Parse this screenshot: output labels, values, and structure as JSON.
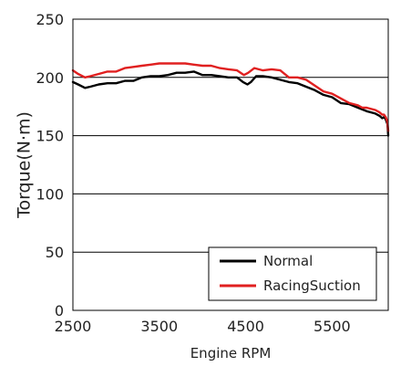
{
  "chart_data": {
    "type": "line",
    "title": "",
    "xlabel": "Engine RPM",
    "ylabel": "Torque(N·m)",
    "xlim": [
      2500,
      6150
    ],
    "ylim": [
      0,
      250
    ],
    "x_ticks": [
      2500,
      3500,
      4500,
      5500
    ],
    "y_ticks": [
      0,
      50,
      100,
      150,
      200,
      250
    ],
    "grid": "horizontal",
    "legend_position": "bottom-right",
    "series": [
      {
        "name": "Normal",
        "color": "#000000",
        "points": [
          [
            2500,
            196
          ],
          [
            2560,
            194
          ],
          [
            2640,
            191
          ],
          [
            2700,
            192
          ],
          [
            2800,
            194
          ],
          [
            2900,
            195
          ],
          [
            3000,
            195
          ],
          [
            3100,
            197
          ],
          [
            3200,
            197
          ],
          [
            3300,
            200
          ],
          [
            3400,
            201
          ],
          [
            3500,
            201
          ],
          [
            3600,
            202
          ],
          [
            3700,
            204
          ],
          [
            3800,
            204
          ],
          [
            3900,
            205
          ],
          [
            4000,
            202
          ],
          [
            4100,
            202
          ],
          [
            4200,
            201
          ],
          [
            4300,
            200
          ],
          [
            4400,
            200
          ],
          [
            4470,
            196
          ],
          [
            4520,
            194
          ],
          [
            4560,
            196
          ],
          [
            4620,
            201
          ],
          [
            4700,
            201
          ],
          [
            4800,
            200
          ],
          [
            4900,
            198
          ],
          [
            5000,
            196
          ],
          [
            5100,
            195
          ],
          [
            5200,
            192
          ],
          [
            5300,
            189
          ],
          [
            5400,
            185
          ],
          [
            5500,
            183
          ],
          [
            5600,
            178
          ],
          [
            5700,
            177
          ],
          [
            5800,
            174
          ],
          [
            5900,
            171
          ],
          [
            6000,
            169
          ],
          [
            6050,
            167
          ],
          [
            6080,
            165
          ],
          [
            6100,
            166
          ],
          [
            6120,
            164
          ],
          [
            6140,
            160
          ],
          [
            6150,
            150
          ]
        ]
      },
      {
        "name": "RacingSuction",
        "color": "#e02020",
        "points": [
          [
            2500,
            206
          ],
          [
            2560,
            203
          ],
          [
            2640,
            200
          ],
          [
            2700,
            201
          ],
          [
            2800,
            203
          ],
          [
            2900,
            205
          ],
          [
            3000,
            205
          ],
          [
            3100,
            208
          ],
          [
            3200,
            209
          ],
          [
            3300,
            210
          ],
          [
            3400,
            211
          ],
          [
            3500,
            212
          ],
          [
            3600,
            212
          ],
          [
            3700,
            212
          ],
          [
            3800,
            212
          ],
          [
            3900,
            211
          ],
          [
            4000,
            210
          ],
          [
            4100,
            210
          ],
          [
            4200,
            208
          ],
          [
            4300,
            207
          ],
          [
            4400,
            206
          ],
          [
            4480,
            202
          ],
          [
            4530,
            204
          ],
          [
            4600,
            208
          ],
          [
            4700,
            206
          ],
          [
            4800,
            207
          ],
          [
            4900,
            206
          ],
          [
            5000,
            200
          ],
          [
            5100,
            200
          ],
          [
            5200,
            198
          ],
          [
            5300,
            193
          ],
          [
            5400,
            188
          ],
          [
            5500,
            186
          ],
          [
            5600,
            182
          ],
          [
            5700,
            178
          ],
          [
            5800,
            176
          ],
          [
            5850,
            174
          ],
          [
            5900,
            174
          ],
          [
            6000,
            172
          ],
          [
            6050,
            170
          ],
          [
            6080,
            168
          ],
          [
            6100,
            168
          ],
          [
            6120,
            166
          ],
          [
            6140,
            162
          ],
          [
            6150,
            154
          ]
        ]
      }
    ]
  }
}
